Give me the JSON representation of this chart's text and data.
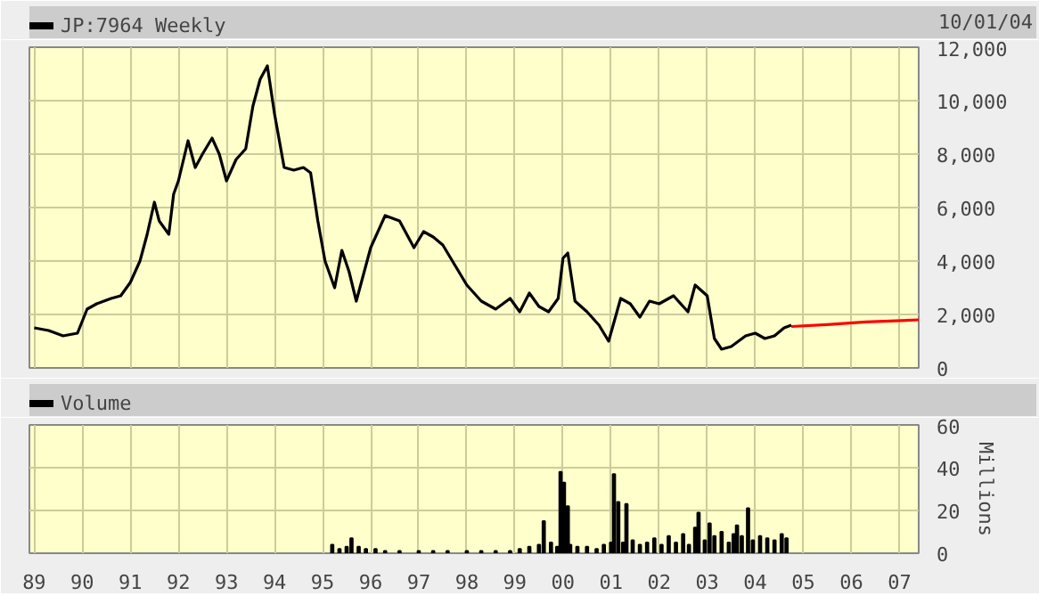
{
  "chart_data": [
    {
      "type": "line",
      "annotations": [
        "10/01/04"
      ],
      "xlim": [
        1988.9,
        2007.4
      ],
      "ylim": [
        0,
        12000
      ],
      "xticks": [
        {
          "value": 1989,
          "label": null
        },
        {
          "value": 1990,
          "label": null
        },
        {
          "value": 1991,
          "label": null
        },
        {
          "value": 1992,
          "label": null
        },
        {
          "value": 1993,
          "label": null
        },
        {
          "value": 1994,
          "label": null
        },
        {
          "value": 1995,
          "label": null
        },
        {
          "value": 1996,
          "label": null
        },
        {
          "value": 1997,
          "label": null
        },
        {
          "value": 1998,
          "label": null
        },
        {
          "value": 1999,
          "label": null
        },
        {
          "value": 2000,
          "label": null
        },
        {
          "value": 2001,
          "label": null
        },
        {
          "value": 2002,
          "label": null
        },
        {
          "value": 2003,
          "label": null
        },
        {
          "value": 2004,
          "label": null
        },
        {
          "value": 2005,
          "label": null
        },
        {
          "value": 2006,
          "label": null
        },
        {
          "value": 2007,
          "label": null
        }
      ],
      "yticks": [
        0,
        {
          "value": 2000,
          "label": "2,000"
        },
        {
          "value": 4000,
          "label": "4,000"
        },
        {
          "value": 6000,
          "label": "6,000"
        },
        {
          "value": 8000,
          "label": "8,000"
        },
        {
          "value": 10000,
          "label": "10,000"
        },
        {
          "value": 12000,
          "label": "12,000"
        }
      ],
      "tick_labels": "y",
      "grid": true,
      "legend": "top left",
      "marker": "none",
      "line_style": "solid",
      "series": [
        {
          "name": "JP:7964 Weekly",
          "color": "#000000",
          "x": [
            1989.0,
            1989.3,
            1989.6,
            1989.9,
            1990.1,
            1990.3,
            1990.6,
            1990.8,
            1991.0,
            1991.2,
            1991.35,
            1991.5,
            1991.6,
            1991.8,
            1991.9,
            1992.0,
            1992.2,
            1992.35,
            1992.5,
            1992.7,
            1992.85,
            1993.0,
            1993.2,
            1993.4,
            1993.55,
            1993.7,
            1993.85,
            1994.0,
            1994.2,
            1994.4,
            1994.6,
            1994.75,
            1994.9,
            1995.05,
            1995.25,
            1995.4,
            1995.55,
            1995.7,
            1996.0,
            1996.3,
            1996.6,
            1996.9,
            1997.1,
            1997.3,
            1997.5,
            1997.7,
            1998.0,
            1998.3,
            1998.6,
            1998.9,
            1999.1,
            1999.3,
            1999.5,
            1999.7,
            1999.9,
            2000.0,
            2000.1,
            2000.25,
            2000.5,
            2000.75,
            2000.95,
            2001.2,
            2001.4,
            2001.6,
            2001.8,
            2002.0,
            2002.3,
            2002.6,
            2002.75,
            2003.0,
            2003.15,
            2003.3,
            2003.5,
            2003.8,
            2004.0,
            2004.2,
            2004.4,
            2004.6,
            2004.75
          ],
          "values": [
            1500,
            1400,
            1200,
            1300,
            2200,
            2400,
            2600,
            2700,
            3200,
            4000,
            5000,
            6200,
            5500,
            5000,
            6500,
            7000,
            8500,
            7500,
            8000,
            8600,
            8000,
            7000,
            7800,
            8200,
            9800,
            10800,
            11300,
            9500,
            7500,
            7400,
            7500,
            7300,
            5500,
            4000,
            3000,
            4400,
            3600,
            2500,
            4500,
            5700,
            5500,
            4500,
            5100,
            4900,
            4600,
            4000,
            3100,
            2500,
            2200,
            2600,
            2100,
            2800,
            2300,
            2100,
            2600,
            4100,
            4300,
            2500,
            2100,
            1600,
            1000,
            2600,
            2400,
            1900,
            2500,
            2400,
            2700,
            2100,
            3100,
            2700,
            1100,
            700,
            800,
            1200,
            1300,
            1100,
            1200,
            1500,
            1600
          ]
        },
        {
          "color": "#ff0000",
          "x": [
            2004.75,
            2005.5,
            2006.3,
            2007.4
          ],
          "values": [
            1550,
            1620,
            1720,
            1800
          ]
        }
      ]
    },
    {
      "type": "bar",
      "xlim": [
        1988.9,
        2007.4
      ],
      "ylim": [
        0,
        60
      ],
      "xticks": [
        {
          "value": 1989,
          "label": "89"
        },
        {
          "value": 1990,
          "label": "90"
        },
        {
          "value": 1991,
          "label": "91"
        },
        {
          "value": 1992,
          "label": "92"
        },
        {
          "value": 1993,
          "label": "93"
        },
        {
          "value": 1994,
          "label": "94"
        },
        {
          "value": 1995,
          "label": "95"
        },
        {
          "value": 1996,
          "label": "96"
        },
        {
          "value": 1997,
          "label": "97"
        },
        {
          "value": 1998,
          "label": "98"
        },
        {
          "value": 1999,
          "label": "99"
        },
        {
          "value": 2000,
          "label": "00"
        },
        {
          "value": 2001,
          "label": "01"
        },
        {
          "value": 2002,
          "label": "02"
        },
        {
          "value": 2003,
          "label": "03"
        },
        {
          "value": 2004,
          "label": "04"
        },
        {
          "value": 2005,
          "label": "05"
        },
        {
          "value": 2006,
          "label": "06"
        },
        {
          "value": 2007,
          "label": "07"
        }
      ],
      "yticks": [
        0,
        20,
        40,
        60
      ],
      "ylabel": "Millions",
      "grid": true,
      "legend": "top left",
      "series": [
        {
          "name": "Volume",
          "color": "#000000",
          "x": [
            1995.2,
            1995.35,
            1995.5,
            1995.6,
            1995.75,
            1995.9,
            1996.1,
            1996.3,
            1996.6,
            1997.0,
            1997.3,
            1997.6,
            1998.0,
            1998.3,
            1998.6,
            1998.9,
            1999.1,
            1999.3,
            1999.5,
            1999.6,
            1999.75,
            1999.88,
            1999.95,
            2000.02,
            2000.1,
            2000.15,
            2000.3,
            2000.5,
            2000.7,
            2000.85,
            2001.0,
            2001.06,
            2001.15,
            2001.25,
            2001.32,
            2001.45,
            2001.6,
            2001.75,
            2001.9,
            2002.05,
            2002.2,
            2002.35,
            2002.5,
            2002.62,
            2002.75,
            2002.82,
            2002.95,
            2003.05,
            2003.15,
            2003.3,
            2003.45,
            2003.55,
            2003.62,
            2003.72,
            2003.85,
            2003.95,
            2004.1,
            2004.25,
            2004.4,
            2004.55,
            2004.65
          ],
          "values": [
            4,
            2,
            3,
            7,
            3,
            2,
            2,
            1,
            1,
            1,
            1,
            1,
            1,
            1,
            1,
            1,
            2,
            3,
            4,
            15,
            5,
            3,
            38,
            33,
            22,
            4,
            3,
            3,
            2,
            4,
            5,
            37,
            24,
            5,
            23,
            6,
            4,
            5,
            7,
            4,
            8,
            5,
            9,
            4,
            12,
            19,
            6,
            14,
            8,
            10,
            5,
            9,
            13,
            8,
            21,
            6,
            8,
            7,
            6,
            9,
            7
          ]
        }
      ]
    }
  ]
}
